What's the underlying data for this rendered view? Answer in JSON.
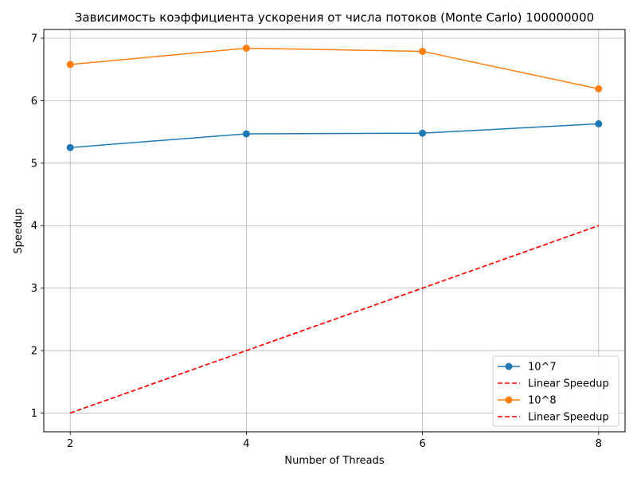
{
  "chart_data": {
    "type": "line",
    "title": "Зависимость коэффициента ускорения от числа потоков (Monte Carlo) 100000000",
    "xlabel": "Number of Threads",
    "ylabel": "Speedup",
    "x": [
      2,
      4,
      6,
      8
    ],
    "xticks": [
      2,
      4,
      6,
      8
    ],
    "yticks": [
      1,
      2,
      3,
      4,
      5,
      6,
      7
    ],
    "xlim": [
      1.7,
      8.3
    ],
    "ylim": [
      0.7,
      7.14
    ],
    "grid": true,
    "legend_position": "lower-right",
    "series": [
      {
        "name": "10^7",
        "values": [
          5.25,
          5.47,
          5.48,
          5.63
        ],
        "color": "#1f77b4",
        "style": "solid",
        "marker": "circle"
      },
      {
        "name": "Linear Speedup",
        "values": [
          1,
          2,
          3,
          4
        ],
        "color": "#ff0000",
        "style": "dashed",
        "marker": "none"
      },
      {
        "name": "10^8",
        "values": [
          6.58,
          6.84,
          6.79,
          6.19
        ],
        "color": "#ff7f0e",
        "style": "solid",
        "marker": "circle"
      },
      {
        "name": "Linear Speedup",
        "values": [
          1,
          2,
          3,
          4
        ],
        "color": "#ff0000",
        "style": "dashed",
        "marker": "none"
      }
    ]
  }
}
